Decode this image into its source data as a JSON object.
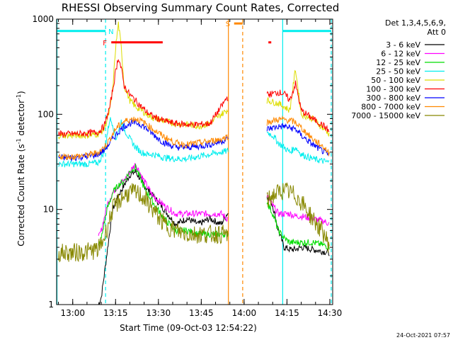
{
  "chart_data": {
    "type": "line",
    "title": "RHESSI Observing Summary Count Rates, Corrected",
    "xlabel": "Start Time (09-Oct-03 12:54:22)",
    "ylabel": "Corrected Count Rate (s⁻¹ detector⁻¹)",
    "ylabel_parts": [
      "Corrected Count Rate (s",
      "-1",
      " detector",
      "-1",
      ")"
    ],
    "yscale": "log",
    "ylim": [
      1,
      1000
    ],
    "xlim": [
      "12:54:22",
      "14:31:00"
    ],
    "x_tick_labels": [
      "13:00",
      "13:15",
      "13:30",
      "13:45",
      "14:00",
      "14:15",
      "14:30"
    ],
    "x_ticks": [
      "13:00",
      "13:15",
      "13:30",
      "13:45",
      "14:00",
      "14:15",
      "14:30"
    ],
    "y_tick_labels": [
      "1",
      "10",
      "100",
      "1000"
    ],
    "y_ticks": [
      1,
      10,
      100,
      1000
    ],
    "legend_header": [
      "Det 1,3,4,5,6,9,",
      "Att 0"
    ],
    "legend_position": "right",
    "series": [
      {
        "name": "3 - 6 keV",
        "color": "#000000",
        "x": [
          "12:55",
          "13:00",
          "13:05",
          "13:09",
          "13:10",
          "13:11",
          "13:12",
          "13:13",
          "13:14",
          "13:16",
          "13:18",
          "13:20",
          "13:22",
          "13:25",
          "13:28",
          "13:32",
          "13:36",
          "13:40",
          "13:44",
          "13:48",
          "13:52",
          "13:54",
          "14:08",
          "14:10",
          "14:12",
          "14:14",
          "14:16",
          "14:18",
          "14:20",
          "14:24",
          "14:28",
          "14:30"
        ],
        "y": [
          null,
          null,
          null,
          1,
          1.2,
          2,
          3.5,
          6,
          10,
          14,
          18,
          23,
          25,
          18,
          14,
          10,
          7,
          8,
          7,
          8,
          7,
          9,
          14,
          11,
          6,
          4,
          3.8,
          3.8,
          4,
          3.8,
          3.6,
          3.5
        ]
      },
      {
        "name": "6 - 12 keV",
        "color": "#ff00ff",
        "x": [
          "12:55",
          "13:00",
          "13:05",
          "13:09",
          "13:10",
          "13:11",
          "13:12",
          "13:13",
          "13:14",
          "13:16",
          "13:18",
          "13:20",
          "13:22",
          "13:25",
          "13:28",
          "13:32",
          "13:36",
          "13:40",
          "13:44",
          "13:48",
          "13:52",
          "13:54",
          "14:08",
          "14:10",
          "14:12",
          "14:14",
          "14:16",
          "14:18",
          "14:20",
          "14:24",
          "14:28",
          "14:30"
        ],
        "y": [
          null,
          null,
          null,
          5,
          6,
          8,
          11,
          13,
          15,
          18,
          20,
          25,
          30,
          20,
          14,
          11,
          9,
          9,
          9,
          9,
          9,
          8,
          14,
          11,
          9,
          9,
          9,
          8.5,
          8.5,
          8,
          7.5,
          7
        ]
      },
      {
        "name": "12 - 25 keV",
        "color": "#00dd00",
        "x": [
          "12:55",
          "13:00",
          "13:05",
          "13:09",
          "13:10",
          "13:11",
          "13:12",
          "13:13",
          "13:14",
          "13:16",
          "13:18",
          "13:20",
          "13:22",
          "13:25",
          "13:28",
          "13:32",
          "13:36",
          "13:40",
          "13:44",
          "13:48",
          "13:52",
          "13:54",
          "14:08",
          "14:10",
          "14:12",
          "14:14",
          "14:16",
          "14:18",
          "14:20",
          "14:24",
          "14:28",
          "14:30"
        ],
        "y": [
          null,
          null,
          null,
          4,
          5,
          7,
          10,
          12,
          15,
          18,
          20,
          25,
          28,
          17,
          12,
          8,
          6,
          6,
          5.5,
          5.5,
          5.5,
          5.5,
          12,
          9,
          6,
          5,
          4.5,
          4.5,
          4.5,
          4.5,
          4.2,
          4
        ]
      },
      {
        "name": "25 - 50 keV",
        "color": "#00eeee",
        "x": [
          "12:55",
          "13:00",
          "13:05",
          "13:09",
          "13:11",
          "13:13",
          "13:14",
          "13:15",
          "13:16",
          "13:17",
          "13:18",
          "13:20",
          "13:22",
          "13:24",
          "13:26",
          "13:28",
          "13:32",
          "13:36",
          "13:40",
          "13:44",
          "13:48",
          "13:52",
          "13:54",
          "14:08",
          "14:10",
          "14:12",
          "14:14",
          "14:16",
          "14:18",
          "14:20",
          "14:24",
          "14:28",
          "14:30"
        ],
        "y": [
          30,
          30,
          30,
          31,
          40,
          90,
          80,
          55,
          65,
          85,
          70,
          55,
          45,
          40,
          38,
          38,
          35,
          34,
          34,
          36,
          38,
          40,
          41,
          65,
          60,
          50,
          45,
          40,
          45,
          38,
          34,
          32,
          31
        ]
      },
      {
        "name": "50 - 100 keV",
        "color": "#dddd00",
        "x": [
          "12:55",
          "13:00",
          "13:05",
          "13:09",
          "13:11",
          "13:13",
          "13:14",
          "13:15",
          "13:16",
          "13:17",
          "13:18",
          "13:20",
          "13:22",
          "13:24",
          "13:26",
          "13:28",
          "13:32",
          "13:36",
          "13:40",
          "13:44",
          "13:48",
          "13:52",
          "13:54",
          "14:08",
          "14:10",
          "14:12",
          "14:14",
          "14:16",
          "14:18",
          "14:20",
          "14:24",
          "14:28",
          "14:30"
        ],
        "y": [
          60,
          60,
          60,
          62,
          70,
          110,
          180,
          500,
          900,
          500,
          200,
          140,
          120,
          110,
          100,
          92,
          85,
          80,
          78,
          75,
          80,
          100,
          110,
          140,
          135,
          130,
          120,
          110,
          300,
          100,
          90,
          70,
          62
        ]
      },
      {
        "name": "100 - 300 keV",
        "color": "#ff0000",
        "x": [
          "12:55",
          "13:00",
          "13:05",
          "13:09",
          "13:11",
          "13:13",
          "13:14",
          "13:15",
          "13:16",
          "13:17",
          "13:18",
          "13:20",
          "13:22",
          "13:24",
          "13:26",
          "13:28",
          "13:32",
          "13:36",
          "13:40",
          "13:44",
          "13:48",
          "13:52",
          "13:54",
          "14:08",
          "14:10",
          "14:12",
          "14:14",
          "14:16",
          "14:18",
          "14:20",
          "14:24",
          "14:28",
          "14:30"
        ],
        "y": [
          62,
          62,
          63,
          65,
          75,
          120,
          180,
          280,
          400,
          300,
          200,
          160,
          140,
          120,
          105,
          95,
          85,
          80,
          78,
          78,
          80,
          120,
          150,
          160,
          165,
          170,
          165,
          140,
          210,
          110,
          90,
          75,
          65
        ]
      },
      {
        "name": "300 - 800 keV",
        "color": "#0000ff",
        "x": [
          "12:55",
          "13:00",
          "13:05",
          "13:09",
          "13:11",
          "13:13",
          "13:14",
          "13:15",
          "13:16",
          "13:17",
          "13:18",
          "13:20",
          "13:22",
          "13:24",
          "13:26",
          "13:28",
          "13:32",
          "13:36",
          "13:40",
          "13:44",
          "13:48",
          "13:52",
          "13:54",
          "14:08",
          "14:10",
          "14:12",
          "14:14",
          "14:16",
          "14:18",
          "14:20",
          "14:24",
          "14:28",
          "14:30"
        ],
        "y": [
          35,
          35,
          36,
          38,
          42,
          50,
          55,
          60,
          65,
          70,
          75,
          80,
          82,
          78,
          70,
          62,
          50,
          45,
          45,
          46,
          48,
          52,
          55,
          70,
          72,
          74,
          75,
          72,
          70,
          60,
          48,
          40,
          36
        ]
      },
      {
        "name": "800 - 7000 keV",
        "color": "#ff8800",
        "x": [
          "12:55",
          "13:00",
          "13:05",
          "13:09",
          "13:11",
          "13:13",
          "13:14",
          "13:15",
          "13:16",
          "13:17",
          "13:18",
          "13:20",
          "13:22",
          "13:24",
          "13:26",
          "13:28",
          "13:32",
          "13:36",
          "13:40",
          "13:44",
          "13:48",
          "13:52",
          "13:54",
          "14:08",
          "14:10",
          "14:12",
          "14:14",
          "14:16",
          "14:18",
          "14:20",
          "14:24",
          "14:28",
          "14:30"
        ],
        "y": [
          36,
          36,
          37,
          40,
          45,
          55,
          62,
          70,
          75,
          80,
          84,
          88,
          90,
          85,
          78,
          70,
          58,
          50,
          48,
          50,
          52,
          55,
          58,
          82,
          85,
          88,
          88,
          86,
          82,
          72,
          55,
          45,
          38
        ]
      },
      {
        "name": "7000 - 15000 keV",
        "color": "#888800",
        "x": [
          "12:55",
          "13:00",
          "13:05",
          "13:09",
          "13:11",
          "13:13",
          "13:14",
          "13:16",
          "13:18",
          "13:20",
          "13:22",
          "13:24",
          "13:26",
          "13:28",
          "13:32",
          "13:36",
          "13:40",
          "13:44",
          "13:48",
          "13:52",
          "13:54",
          "14:08",
          "14:10",
          "14:12",
          "14:14",
          "14:16",
          "14:18",
          "14:20",
          "14:24",
          "14:28",
          "14:30"
        ],
        "y": [
          3.5,
          3.5,
          3.6,
          3.8,
          5,
          8,
          10,
          12,
          14,
          15,
          15,
          14,
          12,
          10,
          7,
          6,
          5.5,
          5.5,
          5.5,
          5.5,
          5.5,
          12,
          14,
          15,
          16,
          15,
          14,
          12,
          8,
          5.5,
          4
        ]
      }
    ],
    "state_bars": [
      {
        "label": "N",
        "color": "#00eeee",
        "spans": [
          [
            "12:54:22",
            "13:11:30"
          ],
          [
            "14:13:30",
            "14:30:30"
          ]
        ],
        "level": 750
      },
      {
        "label": "F",
        "color": "#ff0000",
        "spans": [
          [
            "13:13:30",
            "13:31:30"
          ],
          [
            "14:08:30",
            "14:09:30"
          ]
        ],
        "level": 570
      },
      {
        "label": "S",
        "color": "#ff8800",
        "spans": [
          [
            "13:56:30",
            "13:59:30"
          ]
        ],
        "level": 900
      }
    ],
    "vertical_lines": [
      {
        "x": "12:54:30",
        "color": "#00eeee",
        "style": "solid"
      },
      {
        "x": "13:11:30",
        "color": "#00eeee",
        "style": "dashed"
      },
      {
        "x": "13:54:30",
        "color": "#ff8800",
        "style": "solid"
      },
      {
        "x": "13:59:30",
        "color": "#ff8800",
        "style": "dashed"
      },
      {
        "x": "14:13:30",
        "color": "#00eeee",
        "style": "solid"
      },
      {
        "x": "14:30:30",
        "color": "#00eeee",
        "style": "dashed"
      }
    ],
    "gap": [
      "13:54:30",
      "14:08:00"
    ],
    "footer_stamp": "24-Oct-2021 07:57"
  }
}
